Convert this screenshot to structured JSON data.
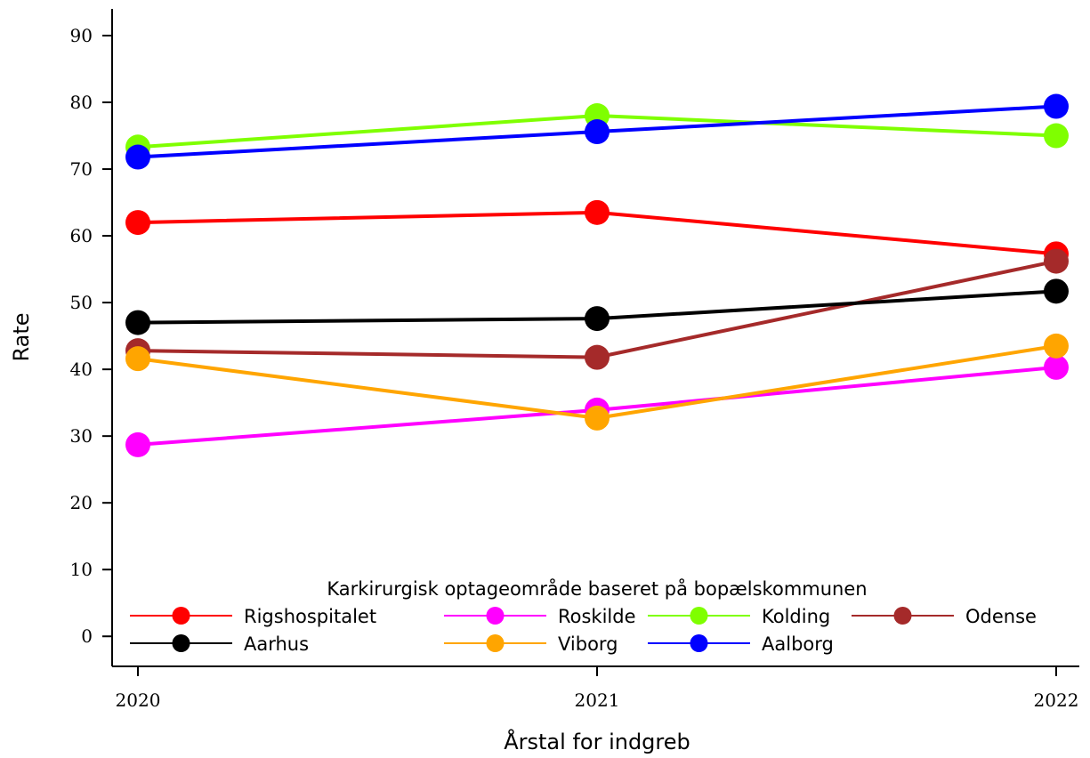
{
  "chart_data": {
    "type": "line",
    "xlabel": "Årstal for indgreb",
    "ylabel": "Rate",
    "x": [
      2020,
      2021,
      2022
    ],
    "x_tick_labels": [
      "2020",
      "2021",
      "2022"
    ],
    "ylim": [
      -4.5,
      94
    ],
    "y_ticks": [
      0,
      10,
      20,
      30,
      40,
      50,
      60,
      70,
      80,
      90
    ],
    "y_tick_labels": [
      "0",
      "10",
      "20",
      "30",
      "40",
      "50",
      "60",
      "70",
      "80",
      "90"
    ],
    "grid": false,
    "legend": {
      "title": "Karkirurgisk optageområde baseret på bopælskommunen",
      "placement": "bottom inside plot, 4 columns"
    },
    "series": [
      {
        "name": "Rigshospitalet",
        "color": "#ff0000",
        "values": [
          62.0,
          63.5,
          57.3
        ]
      },
      {
        "name": "Roskilde",
        "color": "#ff00ff",
        "values": [
          28.7,
          33.9,
          40.3
        ]
      },
      {
        "name": "Kolding",
        "color": "#7fff00",
        "values": [
          73.3,
          78.0,
          75.0
        ]
      },
      {
        "name": "Odense",
        "color": "#a52a2a",
        "values": [
          42.8,
          41.8,
          56.2
        ]
      },
      {
        "name": "Aarhus",
        "color": "#000000",
        "values": [
          47.0,
          47.6,
          51.7
        ]
      },
      {
        "name": "Viborg",
        "color": "#ffa500",
        "values": [
          41.6,
          32.7,
          43.5
        ]
      },
      {
        "name": "Aalborg",
        "color": "#0000ff",
        "values": [
          71.8,
          75.6,
          79.4
        ]
      }
    ]
  }
}
